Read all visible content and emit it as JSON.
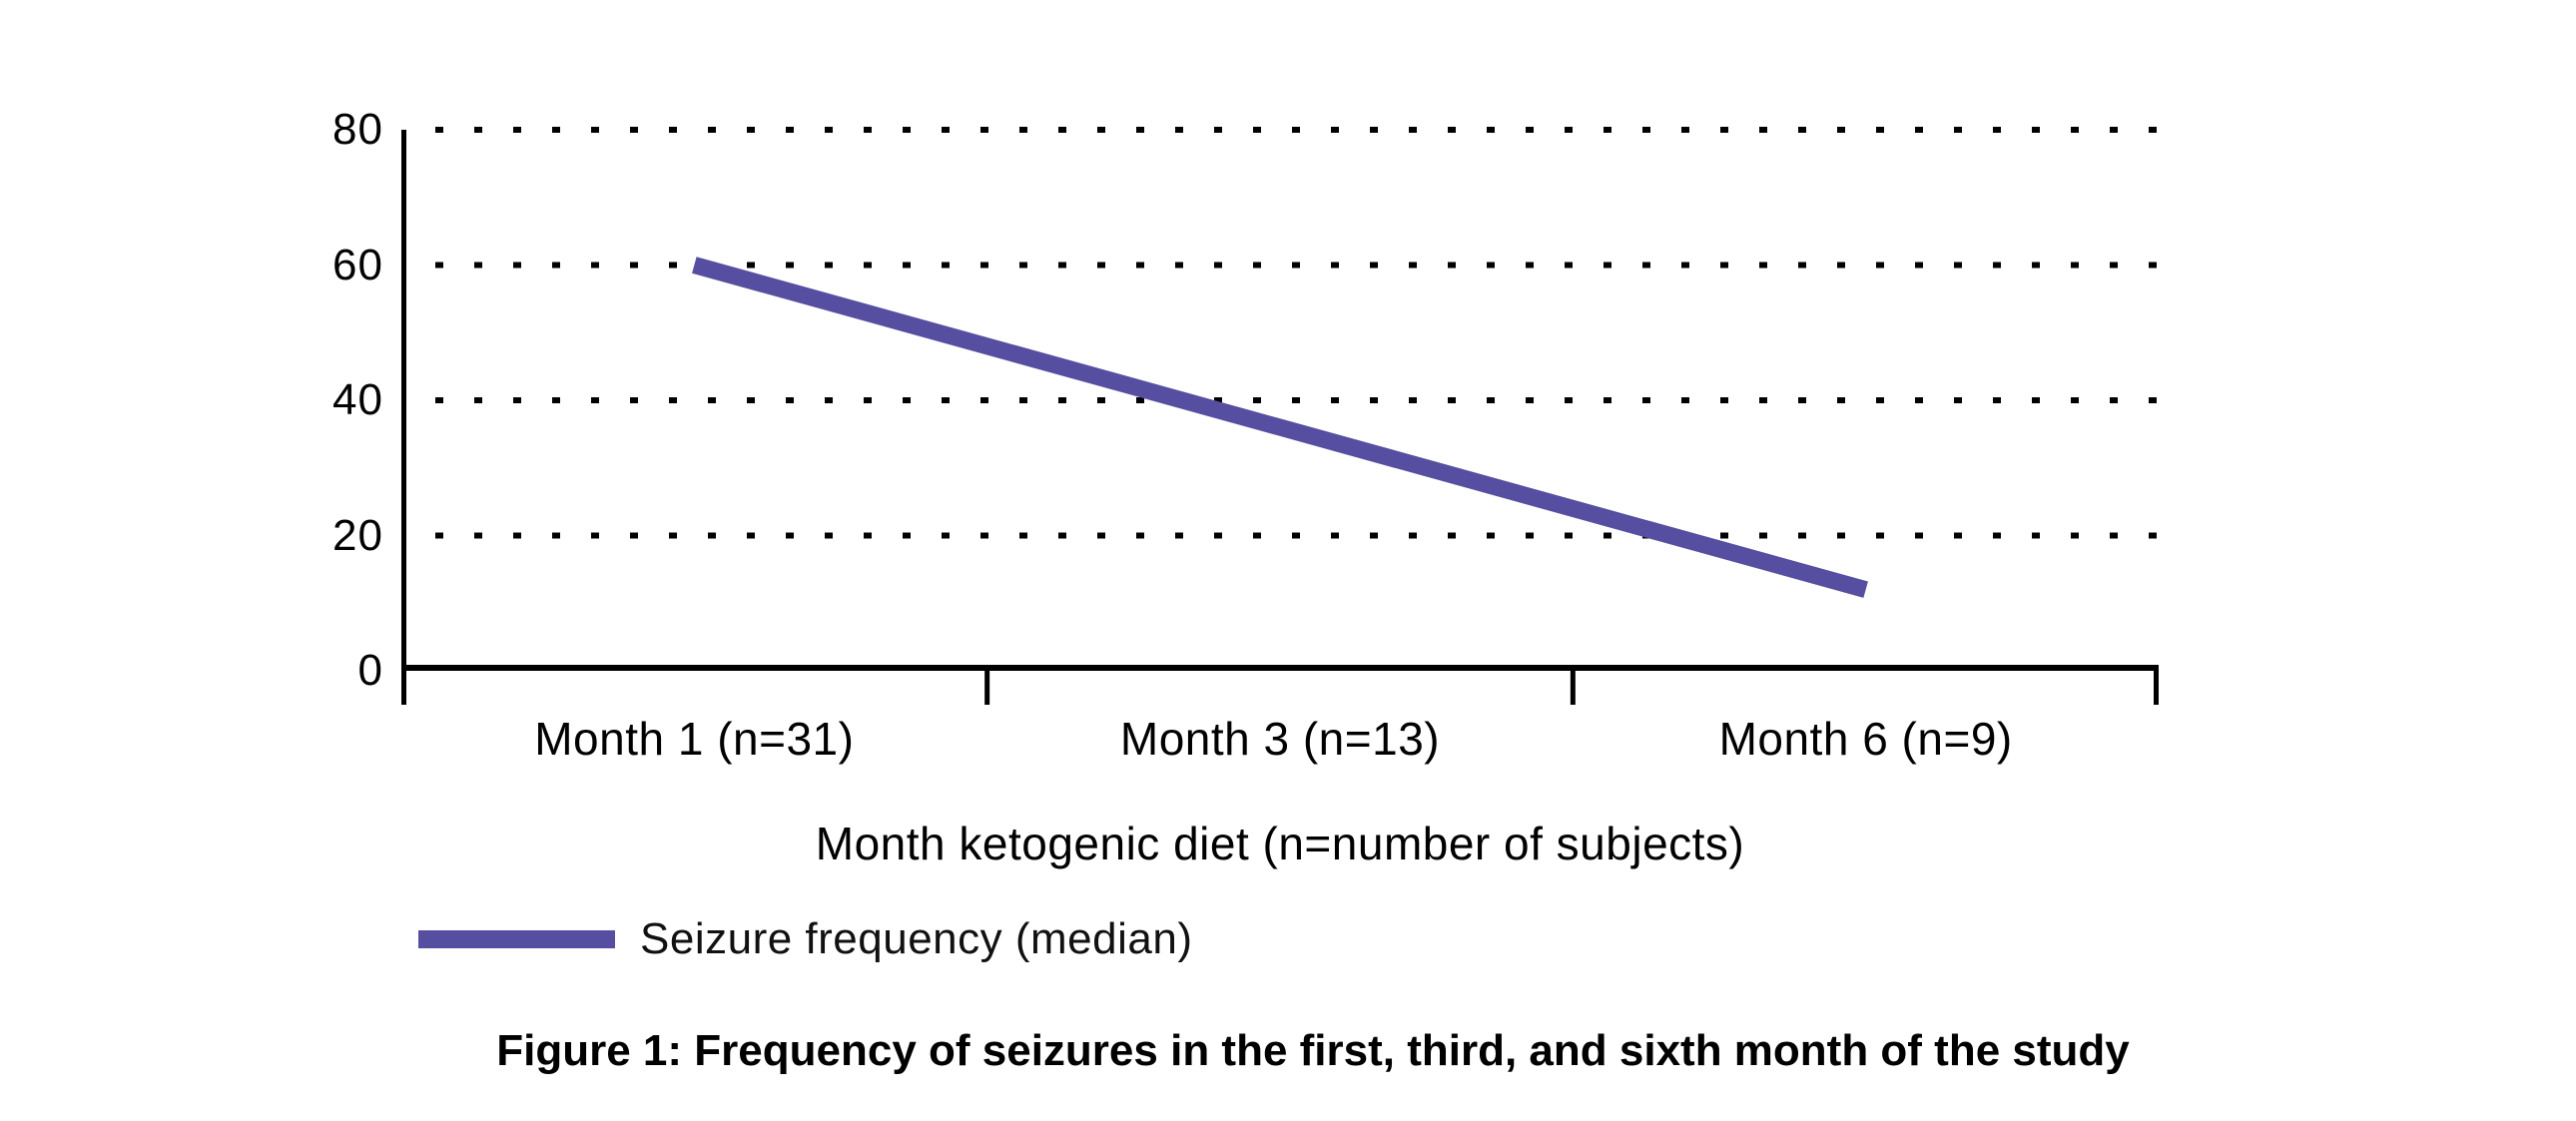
{
  "figure": {
    "caption": "Figure 1: Frequency of seizures in the first, third, and sixth month of the study"
  },
  "chart_data": {
    "type": "line",
    "title": "",
    "categories": [
      "Month 1 (n=31)",
      "Month 3 (n=13)",
      "Month 6 (n=9)"
    ],
    "series": [
      {
        "name": "Seizure frequency (median)",
        "values": [
          60,
          36,
          12
        ],
        "color": "#564EA0"
      }
    ],
    "xlabel": "Month ketogenic diet (n=number of subjects)",
    "ylabel": "",
    "ylim": [
      0,
      80
    ],
    "yticks": [
      0,
      20,
      40,
      60,
      80
    ],
    "grid": "horizontal-dotted",
    "grid_color": "#000000",
    "axis_color": "#000000",
    "text_color": "#000000",
    "legend_position": "bottom-left"
  }
}
